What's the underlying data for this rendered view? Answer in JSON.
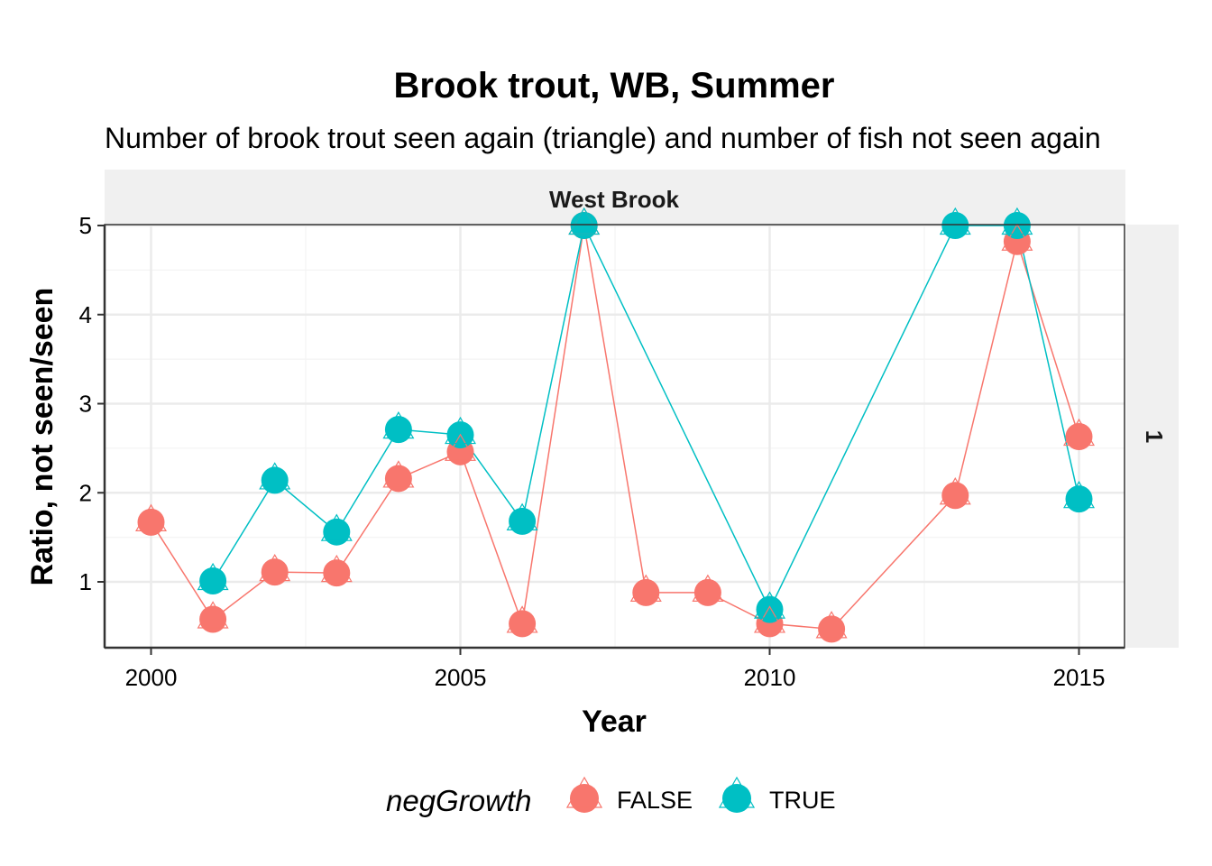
{
  "chart_data": {
    "type": "line",
    "title": "Brook trout, WB, Summer",
    "subtitle": "Number of brook trout seen again (triangle) and number of fish not seen again",
    "facet_column": "West Brook",
    "facet_row": "1",
    "xlabel": "Year",
    "ylabel": "Ratio, not seen/seen",
    "xlim": [
      1999.75,
      2015.75
    ],
    "ylim": [
      0.3,
      5
    ],
    "xticks": [
      2000,
      2005,
      2010,
      2015
    ],
    "yticks": [
      1,
      2,
      3,
      4,
      5
    ],
    "grid": true,
    "legend": {
      "title": "negGrowth",
      "position": "bottom",
      "entries": [
        "FALSE",
        "TRUE"
      ]
    },
    "series": [
      {
        "name": "FALSE",
        "color": "#F8766D",
        "x": [
          2000,
          2001,
          2002,
          2003,
          2004,
          2005,
          2006,
          2007,
          2008,
          2009,
          2010,
          2011,
          2013,
          2014,
          2015
        ],
        "y": [
          1.67,
          0.58,
          1.11,
          1.1,
          2.16,
          2.46,
          0.53,
          5.0,
          0.88,
          0.88,
          0.53,
          0.47,
          1.97,
          4.82,
          2.63
        ]
      },
      {
        "name": "TRUE",
        "color": "#00BFC4",
        "x": [
          2001,
          2002,
          2003,
          2004,
          2005,
          2006,
          2007,
          2010,
          2013,
          2014,
          2015
        ],
        "y": [
          1.01,
          2.14,
          1.56,
          2.71,
          2.65,
          1.68,
          5.0,
          0.69,
          5.0,
          5.0,
          1.93
        ]
      }
    ]
  }
}
